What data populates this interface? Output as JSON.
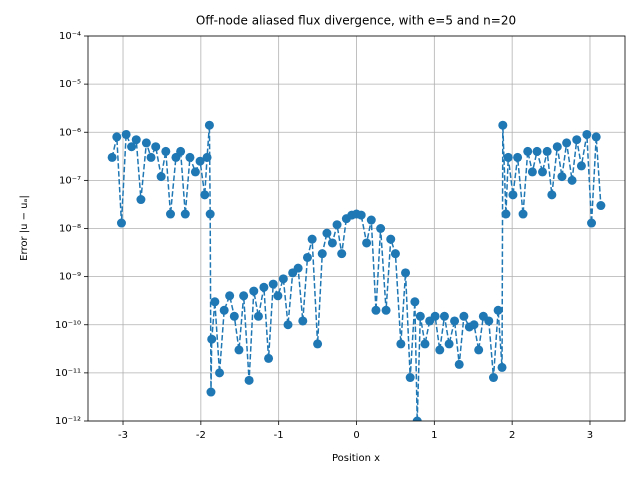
{
  "chart_data": {
    "type": "line",
    "title": "Off-node aliased flux divergence, with e=5 and n=20",
    "x_label": "Position x",
    "y_label": "Error |u − uₐ|",
    "log_y": true,
    "grid": true,
    "line_style": "dashed",
    "marker": "circle",
    "xlim": [
      -3.45,
      3.45
    ],
    "xticks": [
      -3,
      -2,
      -1,
      0,
      1,
      2,
      3
    ],
    "ylim": [
      1e-12,
      0.0001
    ],
    "yticks": [
      {
        "value": 1e-12,
        "label": "10⁻¹²"
      },
      {
        "value": 1e-11,
        "label": "10⁻¹¹"
      },
      {
        "value": 1e-10,
        "label": "10⁻¹⁰"
      },
      {
        "value": 1e-09,
        "label": "10⁻⁹"
      },
      {
        "value": 1e-08,
        "label": "10⁻⁸"
      },
      {
        "value": 1e-07,
        "label": "10⁻⁷"
      },
      {
        "value": 1e-06,
        "label": "10⁻⁶"
      },
      {
        "value": 1e-05,
        "label": "10⁻⁵"
      },
      {
        "value": 0.0001,
        "label": "10⁻⁴"
      }
    ],
    "series": [
      {
        "color": "#1f77b4",
        "x": [
          -3.14,
          -3.08,
          -3.02,
          -2.96,
          -2.89,
          -2.83,
          -2.77,
          -2.7,
          -2.64,
          -2.58,
          -2.51,
          -2.45,
          -2.39,
          -2.32,
          -2.26,
          -2.2,
          -2.14,
          -2.07,
          -2.01,
          -1.95,
          -1.92,
          -1.89,
          -1.88,
          -1.87,
          -1.86,
          -1.82,
          -1.76,
          -1.7,
          -1.63,
          -1.57,
          -1.51,
          -1.45,
          -1.38,
          -1.32,
          -1.26,
          -1.19,
          -1.13,
          -1.07,
          -1.01,
          -0.94,
          -0.88,
          -0.82,
          -0.75,
          -0.69,
          -0.63,
          -0.57,
          -0.5,
          -0.44,
          -0.38,
          -0.31,
          -0.25,
          -0.19,
          -0.13,
          -0.06,
          0.0,
          0.06,
          0.13,
          0.19,
          0.25,
          0.31,
          0.38,
          0.44,
          0.5,
          0.57,
          0.63,
          0.69,
          0.75,
          0.78,
          0.82,
          0.88,
          0.94,
          1.01,
          1.07,
          1.13,
          1.19,
          1.26,
          1.32,
          1.38,
          1.45,
          1.51,
          1.57,
          1.63,
          1.7,
          1.76,
          1.82,
          1.87,
          1.88,
          1.92,
          1.95,
          2.01,
          2.07,
          2.14,
          2.2,
          2.26,
          2.32,
          2.39,
          2.45,
          2.51,
          2.58,
          2.64,
          2.7,
          2.77,
          2.83,
          2.89,
          2.96,
          3.02,
          3.08,
          3.14
        ],
        "values": [
          3e-07,
          8e-07,
          1.3e-08,
          9e-07,
          5e-07,
          7e-07,
          4e-08,
          6e-07,
          3e-07,
          5e-07,
          1.2e-07,
          4e-07,
          2e-08,
          3e-07,
          4e-07,
          2e-08,
          3e-07,
          1.5e-07,
          2.5e-07,
          5e-08,
          3e-07,
          1.4e-06,
          2e-08,
          4e-12,
          5e-11,
          3e-10,
          1e-11,
          2e-10,
          4e-10,
          1.5e-10,
          3e-11,
          4e-10,
          7e-12,
          5e-10,
          1.5e-10,
          6e-10,
          2e-11,
          7e-10,
          4e-10,
          9e-10,
          1e-10,
          1.2e-09,
          1.5e-09,
          1.2e-10,
          2.5e-09,
          6e-09,
          4e-11,
          3e-09,
          8e-09,
          5e-09,
          1.2e-08,
          3e-09,
          1.6e-08,
          1.9e-08,
          2e-08,
          1.9e-08,
          5e-09,
          1.5e-08,
          2e-10,
          1e-08,
          2e-10,
          6e-09,
          3e-09,
          4e-11,
          1.2e-09,
          8e-12,
          3e-10,
          1e-12,
          1.5e-10,
          4e-11,
          1.2e-10,
          1.5e-10,
          3e-11,
          1.5e-10,
          4e-11,
          1.2e-10,
          1.5e-11,
          1.5e-10,
          9e-11,
          1e-10,
          3e-11,
          1.5e-10,
          1.2e-10,
          8e-12,
          2e-10,
          1.3e-11,
          1.4e-06,
          2e-08,
          3e-07,
          5e-08,
          3e-07,
          2e-08,
          4e-07,
          1.5e-07,
          4e-07,
          1.5e-07,
          4e-07,
          5e-08,
          5e-07,
          1.2e-07,
          6e-07,
          1e-07,
          7e-07,
          2e-07,
          9e-07,
          1.3e-08,
          8e-07,
          3e-08
        ]
      }
    ]
  }
}
